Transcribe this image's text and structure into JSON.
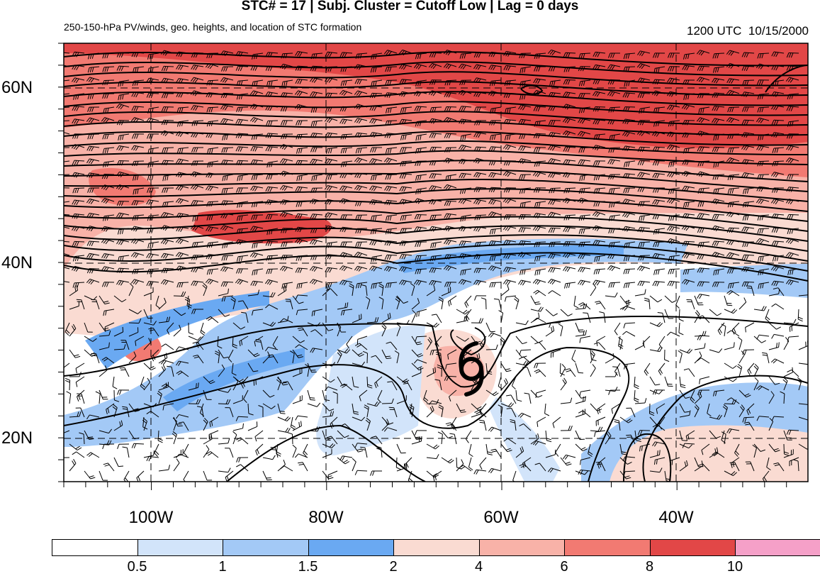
{
  "title": "STC# = 17 | Subj. Cluster = Cutoff Low | Lag = 0 days",
  "subtitle": "250-150-hPa PV/winds, geo. heights, and location of STC formation",
  "timestamp": "1200 UTC  10/15/2000",
  "latitude_labels": [
    "60N",
    "40N",
    "20N"
  ],
  "longitude_labels": [
    "100W",
    "80W",
    "60W",
    "40W"
  ],
  "colorbar": {
    "colors": [
      "#ffffff",
      "#d2e4fa",
      "#a3c9f6",
      "#6aa9f2",
      "#fadbd2",
      "#f8b2a8",
      "#f27a72",
      "#e24747",
      "#f5a0c8"
    ],
    "labels": [
      "0.5",
      "1",
      "1.5",
      "2",
      "4",
      "6",
      "8",
      "10"
    ]
  },
  "storm_marker": "tropical-cyclone-symbol"
}
